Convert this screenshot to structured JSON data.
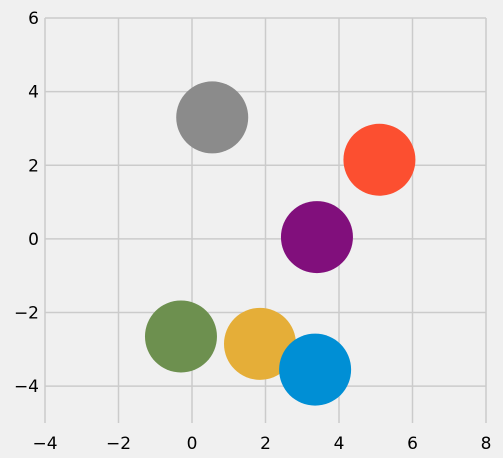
{
  "chart_data": {
    "type": "scatter",
    "title": "",
    "xlabel": "",
    "ylabel": "",
    "xlim": [
      -4,
      8
    ],
    "ylim": [
      -5,
      6
    ],
    "xticks": [
      -4,
      -2,
      0,
      2,
      4,
      6,
      8
    ],
    "yticks": [
      -4,
      -2,
      0,
      2,
      4,
      6
    ],
    "grid": true,
    "style": "fivethirtyeight",
    "background": "#f0f0f0",
    "grid_color": "#cbcbcb",
    "points": [
      {
        "x": 0.55,
        "y": 3.3,
        "color": "#8b8b8b"
      },
      {
        "x": 5.1,
        "y": 2.15,
        "color": "#fc4f30"
      },
      {
        "x": 3.4,
        "y": 0.05,
        "color": "#810f7c"
      },
      {
        "x": -0.3,
        "y": -2.65,
        "color": "#6d904f"
      },
      {
        "x": 1.85,
        "y": -2.85,
        "color": "#e5ae38"
      },
      {
        "x": 3.35,
        "y": -3.55,
        "color": "#008fd5"
      }
    ],
    "marker": "circle"
  }
}
